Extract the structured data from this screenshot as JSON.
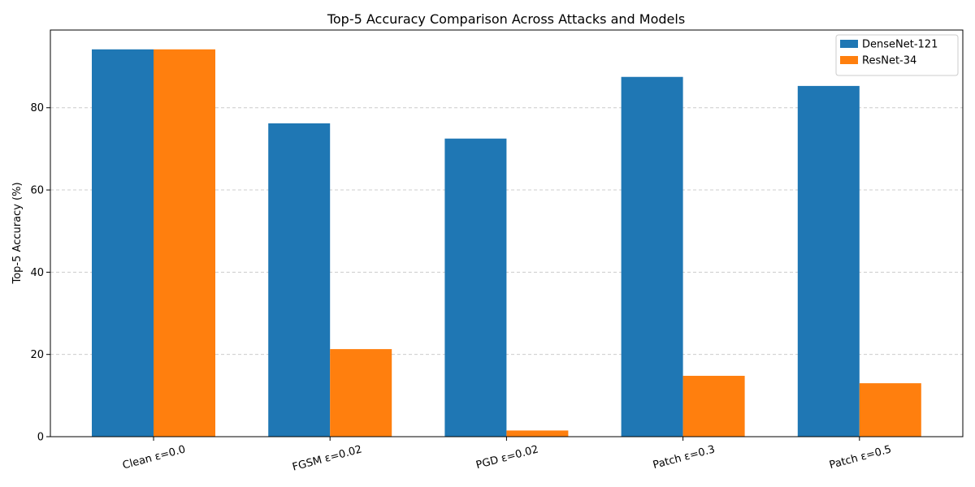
{
  "chart_data": {
    "type": "bar",
    "title": "Top-5 Accuracy Comparison Across Attacks and Models",
    "xlabel": "",
    "ylabel": "Top-5 Accuracy (%)",
    "categories": [
      "Clean ε=0.0",
      "FGSM ε=0.02",
      "PGD ε=0.02",
      "Patch ε=0.3",
      "Patch ε=0.5"
    ],
    "series": [
      {
        "name": "DenseNet-121",
        "color": "#1f77b4",
        "values": [
          94.2,
          76.2,
          72.5,
          87.5,
          85.3
        ]
      },
      {
        "name": "ResNet-34",
        "color": "#ff7f0e",
        "values": [
          94.2,
          21.3,
          1.5,
          14.8,
          13.0
        ]
      }
    ],
    "ylim": [
      0,
      98.9
    ],
    "yticks": [
      0,
      20,
      40,
      60,
      80
    ],
    "grid": "y-dashed",
    "legend_position": "top-right"
  }
}
